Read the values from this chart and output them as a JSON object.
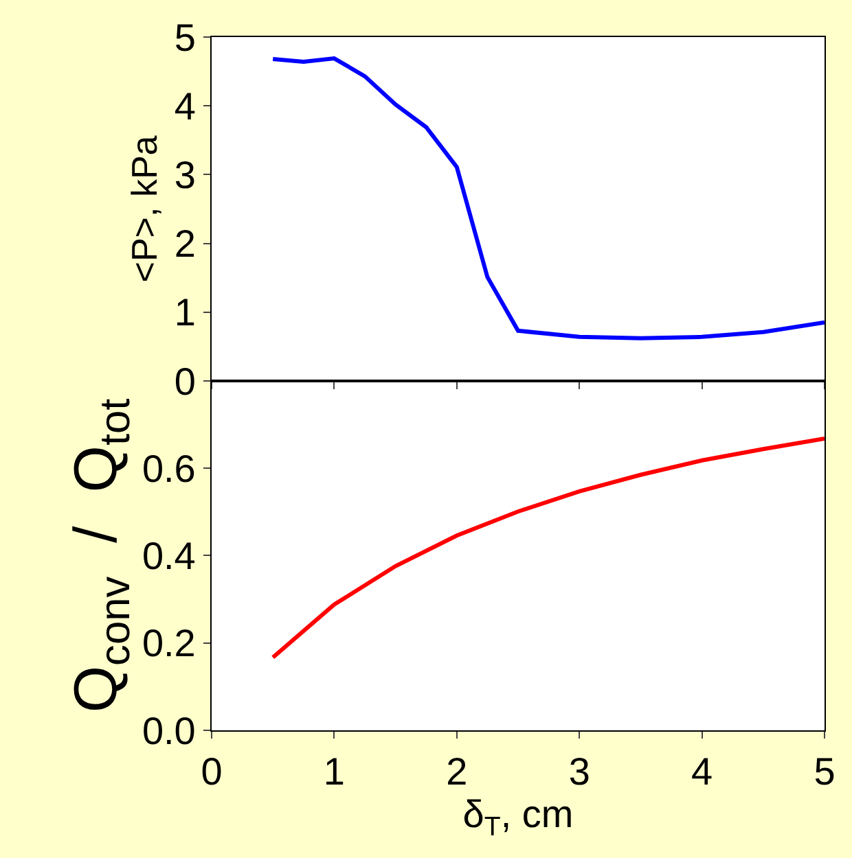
{
  "chart_data": [
    {
      "type": "line",
      "ylabel": "<P>, kPa",
      "x": [
        0.5,
        0.75,
        1,
        1.25,
        1.5,
        1.75,
        2,
        2.25,
        2.5,
        3,
        3.5,
        4,
        4.5,
        5
      ],
      "series": [
        {
          "color": "#0000ff",
          "values": [
            4.68,
            4.64,
            4.69,
            4.43,
            4.02,
            3.69,
            3.11,
            1.51,
            0.73,
            0.64,
            0.62,
            0.64,
            0.71,
            0.85
          ]
        }
      ],
      "xlim": [
        0,
        5
      ],
      "xticks": [
        0,
        1,
        2,
        3,
        4,
        5
      ],
      "ylim": [
        0,
        5
      ],
      "yticks": [
        0,
        1,
        2,
        3,
        4,
        5
      ],
      "tick_labels": "y"
    },
    {
      "type": "line",
      "xlabel": "δ$_{T}$, cm",
      "ylabel": "Q$_{conv}$  /  Q$_{tot}$",
      "x": [
        0.5,
        1,
        1.5,
        2,
        2.5,
        3,
        3.5,
        4,
        4.5,
        5
      ],
      "series": [
        {
          "color": "#ff0000",
          "values": [
            0.167,
            0.288,
            0.376,
            0.446,
            0.501,
            0.547,
            0.585,
            0.618,
            0.644,
            0.668
          ]
        }
      ],
      "xlim": [
        0,
        5
      ],
      "xticks": [
        0,
        1,
        2,
        3,
        4,
        5
      ],
      "ylim": [
        0,
        0.8
      ],
      "yticks": [
        {
          "value": 0,
          "label": "0.0"
        },
        0.2,
        0.4,
        0.6
      ]
    }
  ]
}
